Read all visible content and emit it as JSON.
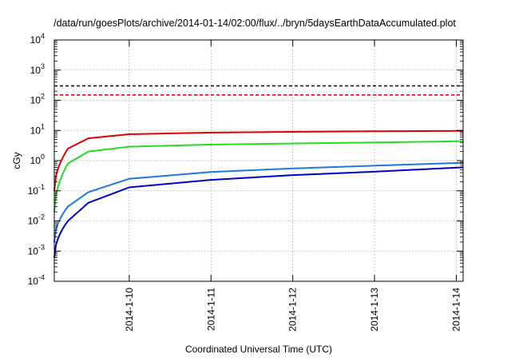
{
  "chart_data": {
    "type": "line",
    "title": "/data/run/goesPlots/archive/2014-01-14/02:00/flux/../bryn/5daysEarthDataAccumulated.plot",
    "xlabel": "Coordinated Universal Time (UTC)",
    "ylabel": "cGy",
    "y_scale": "log",
    "ylim": [
      0.0001,
      10000
    ],
    "xlim": [
      "2014-01-09 02:00",
      "2014-01-14 02:00"
    ],
    "x_ticks": [
      "2014-1-10",
      "2014-1-11",
      "2014-1-12",
      "2014-1-13",
      "2014-1-14"
    ],
    "y_ticks": [
      {
        "base": "10",
        "exp": "-4"
      },
      {
        "base": "10",
        "exp": "-3"
      },
      {
        "base": "10",
        "exp": "-2"
      },
      {
        "base": "10",
        "exp": "-1"
      },
      {
        "base": "10",
        "exp": "0"
      },
      {
        "base": "10",
        "exp": "1"
      },
      {
        "base": "10",
        "exp": "2"
      },
      {
        "base": "10",
        "exp": "3"
      },
      {
        "base": "10",
        "exp": "4"
      }
    ],
    "grid": true,
    "reference_lines": [
      {
        "y": 300,
        "color": "#000000",
        "style": "dashed"
      },
      {
        "y": 150,
        "color": "#ff0000",
        "style": "dashed"
      }
    ],
    "series": [
      {
        "color": "#e00000",
        "x": [
          "2014-01-09 02:00",
          "2014-01-09 06:00",
          "2014-01-09 12:00",
          "2014-01-10 00:00",
          "2014-01-11 00:00",
          "2014-01-12 00:00",
          "2014-01-13 00:00",
          "2014-01-14 02:00"
        ],
        "y": [
          0.1,
          2.5,
          5.5,
          7.5,
          8.5,
          9.0,
          9.4,
          9.7
        ]
      },
      {
        "color": "#22dd22",
        "x": [
          "2014-01-09 02:00",
          "2014-01-09 06:00",
          "2014-01-09 12:00",
          "2014-01-10 00:00",
          "2014-01-11 00:00",
          "2014-01-12 00:00",
          "2014-01-13 00:00",
          "2014-01-14 02:00"
        ],
        "y": [
          0.02,
          0.8,
          2.0,
          2.9,
          3.4,
          3.7,
          4.0,
          4.4
        ]
      },
      {
        "color": "#1e78e0",
        "x": [
          "2014-01-09 02:00",
          "2014-01-09 06:00",
          "2014-01-09 12:00",
          "2014-01-10 00:00",
          "2014-01-11 00:00",
          "2014-01-12 00:00",
          "2014-01-13 00:00",
          "2014-01-14 02:00"
        ],
        "y": [
          0.002,
          0.03,
          0.09,
          0.25,
          0.42,
          0.55,
          0.68,
          0.85
        ]
      },
      {
        "color": "#0000c8",
        "x": [
          "2014-01-09 02:00",
          "2014-01-09 06:00",
          "2014-01-09 12:00",
          "2014-01-10 00:00",
          "2014-01-11 00:00",
          "2014-01-12 00:00",
          "2014-01-13 00:00",
          "2014-01-14 02:00"
        ],
        "y": [
          0.0006,
          0.01,
          0.04,
          0.13,
          0.23,
          0.33,
          0.43,
          0.6
        ]
      }
    ]
  }
}
